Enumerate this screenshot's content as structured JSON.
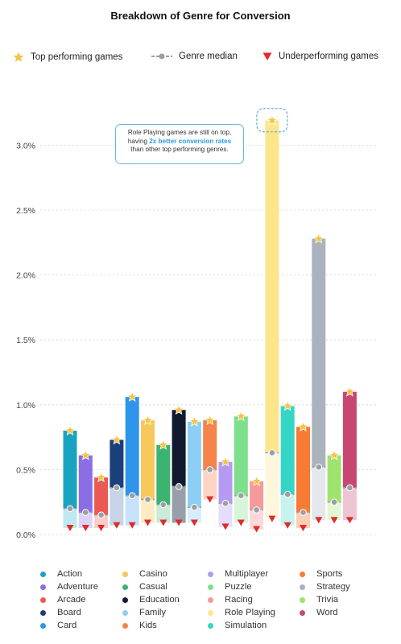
{
  "chart_data": {
    "type": "bar",
    "title": "Breakdown of Genre for Conversion",
    "y_ticks": [
      "0.0%",
      "0.5%",
      "1.0%",
      "1.5%",
      "2.0%",
      "2.5%",
      "3.0%"
    ],
    "ylim": [
      0,
      3.2
    ],
    "legend_top": [
      {
        "name": "Top performing games",
        "marker": "star"
      },
      {
        "name": "Genre median",
        "marker": "median"
      },
      {
        "name": "Underperforming games",
        "marker": "triangle"
      }
    ],
    "genres": [
      {
        "name": "Action",
        "color": "#1aa3c1",
        "light": "#bfe8f1",
        "top": 0.8,
        "median": 0.2,
        "low": 0.05
      },
      {
        "name": "Adventure",
        "color": "#8b6ee6",
        "light": "#ddd3f8",
        "top": 0.61,
        "median": 0.17,
        "low": 0.05
      },
      {
        "name": "Arcade",
        "color": "#ea5a52",
        "light": "#f9cdca",
        "top": 0.44,
        "median": 0.15,
        "low": 0.05
      },
      {
        "name": "Board",
        "color": "#1b3f7a",
        "light": "#c7d3e6",
        "top": 0.73,
        "median": 0.36,
        "low": 0.07
      },
      {
        "name": "Card",
        "color": "#2e95ea",
        "light": "#c6e2fb",
        "top": 1.06,
        "median": 0.3,
        "low": 0.07
      },
      {
        "name": "Casino",
        "color": "#f7c85c",
        "light": "#fdecc2",
        "top": 0.88,
        "median": 0.27,
        "low": 0.09
      },
      {
        "name": "Casual",
        "color": "#3cb371",
        "light": "#c9ebd7",
        "top": 0.69,
        "median": 0.23,
        "low": 0.09
      },
      {
        "name": "Education",
        "color": "#0f1a2e",
        "light": "#999fa8",
        "top": 0.96,
        "median": 0.37,
        "low": 0.09
      },
      {
        "name": "Family",
        "color": "#8dcff4",
        "light": "#d6eefb",
        "top": 0.87,
        "median": 0.21,
        "low": 0.09
      },
      {
        "name": "Kids",
        "color": "#f5834a",
        "light": "#fdd5c2",
        "top": 0.88,
        "median": 0.5,
        "low": 0.27
      },
      {
        "name": "Multiplayer",
        "color": "#b69af2",
        "light": "#e6dcfb",
        "top": 0.56,
        "median": 0.24,
        "low": 0.06
      },
      {
        "name": "Puzzle",
        "color": "#7ddf8c",
        "light": "#d6f5db",
        "top": 0.91,
        "median": 0.3,
        "low": 0.09
      },
      {
        "name": "Racing",
        "color": "#f59a9a",
        "light": "#fbd9d9",
        "top": 0.41,
        "median": 0.19,
        "low": 0.04
      },
      {
        "name": "Role Playing",
        "color": "#fde68a",
        "light": "#fef7dc",
        "top": 3.19,
        "median": 0.63,
        "low": 0.12
      },
      {
        "name": "Simulation",
        "color": "#36d6c7",
        "light": "#c8f2ee",
        "top": 0.99,
        "median": 0.31,
        "low": 0.07
      },
      {
        "name": "Sports",
        "color": "#f77b35",
        "light": "#fdd0b3",
        "top": 0.83,
        "median": 0.17,
        "low": 0.05
      },
      {
        "name": "Strategy",
        "color": "#aab3bd",
        "light": "#e4e8ec",
        "top": 2.28,
        "median": 0.52,
        "low": 0.11
      },
      {
        "name": "Trivia",
        "color": "#9ee36f",
        "light": "#e2f7d3",
        "top": 0.61,
        "median": 0.25,
        "low": 0.11
      },
      {
        "name": "Word",
        "color": "#c94673",
        "light": "#efc4d4",
        "top": 1.1,
        "median": 0.36,
        "low": 0.11
      }
    ],
    "annotation": {
      "line1": "Role Playing games are still on top,",
      "line2_prefix": "having ",
      "line2_highlight": "2x better conversion rates",
      "line3": "than other top performing genres.",
      "target": "Role Playing"
    }
  },
  "colors": {
    "star": "#f6c342",
    "triangle": "#e02b2b",
    "median": "#9aa0a6",
    "callout_border": "#6cb0e0"
  }
}
